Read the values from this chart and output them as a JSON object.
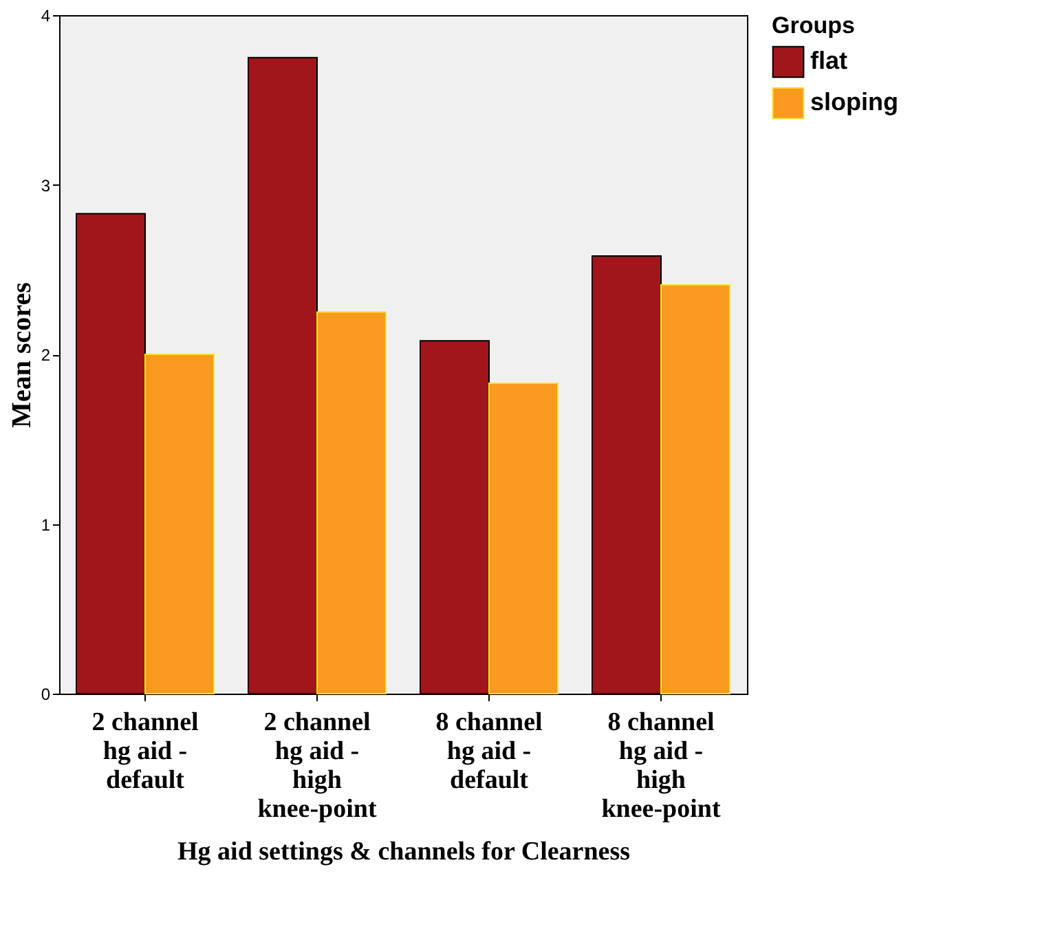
{
  "chart_data": {
    "type": "bar",
    "xlabel": "Hg aid settings & channels for Clearness",
    "ylabel": "Mean scores",
    "legend_title": "Groups",
    "categories": [
      "2 channel hg aid - default",
      "2 channel hg aid - high knee-point",
      "8 channel hg aid - default",
      "8 channel hg aid - high knee-point"
    ],
    "series": [
      {
        "name": "flat",
        "color": "#a0161a",
        "values": [
          2.83,
          3.75,
          2.08,
          2.58
        ]
      },
      {
        "name": "sloping",
        "color": "#f89a1e",
        "values": [
          2.0,
          2.25,
          1.83,
          2.41
        ]
      }
    ],
    "ylim": [
      0,
      4
    ],
    "yticks": [
      0,
      1,
      2,
      3,
      4
    ],
    "grid": false,
    "legend": "top right"
  }
}
